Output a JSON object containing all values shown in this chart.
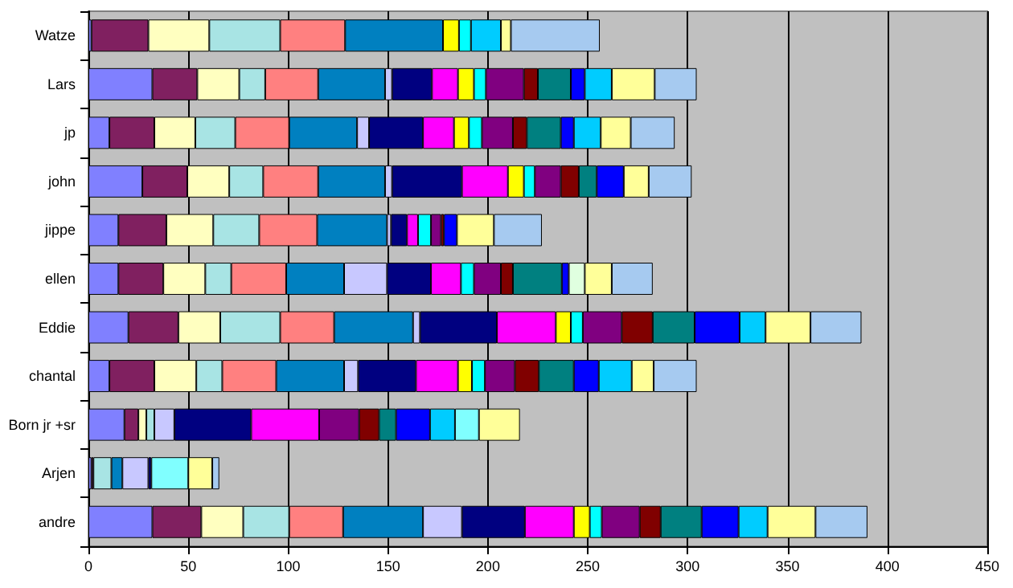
{
  "chart_data": {
    "type": "bar",
    "orientation": "horizontal",
    "stacked": true,
    "categories": [
      "Watze",
      "Lars",
      "jp",
      "john",
      "jippe",
      "ellen",
      "Eddie",
      "chantal",
      "Born jr +sr",
      "Arjen",
      "andre"
    ],
    "xlim": [
      0,
      450
    ],
    "xticks": [
      0,
      50,
      100,
      150,
      200,
      250,
      300,
      350,
      400,
      450
    ],
    "grid": "x",
    "series": [
      {
        "color": "#8080ff",
        "values": [
          1.5,
          32,
          10.5,
          27,
          15,
          15,
          20,
          10.5,
          18,
          1.5,
          32
        ]
      },
      {
        "color": "#802060",
        "values": [
          28.5,
          22.5,
          22.5,
          22.5,
          24,
          22.5,
          25,
          22.5,
          7,
          1,
          24.5
        ]
      },
      {
        "color": "#ffffc0",
        "values": [
          30.5,
          21,
          20.5,
          21,
          23.5,
          21,
          21,
          21,
          4,
          0,
          21
        ]
      },
      {
        "color": "#a8e4e4",
        "values": [
          35.5,
          13,
          20,
          17,
          23,
          13,
          30,
          13,
          4,
          9,
          23
        ]
      },
      {
        "color": "#ff8080",
        "values": [
          32.5,
          26.5,
          27,
          27.5,
          29,
          27.5,
          27,
          27,
          0,
          0,
          27
        ]
      },
      {
        "color": "#0080c0",
        "values": [
          49,
          33.5,
          34,
          33.5,
          35,
          29,
          39.5,
          34,
          0,
          5.5,
          40
        ]
      },
      {
        "color": "#c8c8ff",
        "values": [
          0,
          3.5,
          6,
          3.5,
          2,
          21.5,
          3.5,
          7,
          10,
          13,
          19.5
        ]
      },
      {
        "color": "#000080",
        "values": [
          0,
          20,
          27,
          35,
          8,
          22,
          38.5,
          29,
          38.5,
          1.5,
          31.5
        ]
      },
      {
        "color": "#ff00ff",
        "values": [
          0,
          13,
          15.5,
          23,
          5.5,
          15,
          29.5,
          21,
          34,
          0,
          24.5
        ]
      },
      {
        "color": "#ffff00",
        "values": [
          8,
          8,
          7.5,
          8,
          0,
          0,
          7.5,
          7,
          0,
          0,
          8
        ]
      },
      {
        "color": "#00ffff",
        "values": [
          6,
          6,
          6.5,
          5.5,
          6.5,
          6.5,
          6,
          6.5,
          0,
          0,
          6
        ]
      },
      {
        "color": "#800080",
        "values": [
          0,
          19,
          15.5,
          13,
          5,
          13.5,
          19.5,
          15,
          20,
          0,
          19
        ]
      },
      {
        "color": "#800000",
        "values": [
          0,
          7,
          7,
          9,
          1.5,
          6,
          15.5,
          12,
          10,
          0,
          10.5
        ]
      },
      {
        "color": "#008080",
        "values": [
          0,
          16.5,
          17,
          9,
          0,
          24.5,
          21,
          17.5,
          8.5,
          0,
          20.5
        ]
      },
      {
        "color": "#0000ff",
        "values": [
          0,
          7,
          6.5,
          13.5,
          6.5,
          3.5,
          22.5,
          12.5,
          17,
          0,
          18.5
        ]
      },
      {
        "color": "#00ccff",
        "values": [
          15,
          13.5,
          13.5,
          0,
          0,
          0,
          13,
          16.5,
          12.5,
          0,
          14.5
        ]
      },
      {
        "color": "#80ffff",
        "values": [
          0,
          0,
          0,
          0,
          0,
          0,
          0,
          0,
          12,
          18.5,
          0
        ]
      },
      {
        "color": "#e0ffe0",
        "values": [
          0,
          0,
          0,
          0,
          0,
          8,
          0,
          0,
          0,
          0,
          0
        ]
      },
      {
        "color": "#ffff99",
        "values": [
          5,
          21.5,
          15,
          12.5,
          18.5,
          13.5,
          22.5,
          11,
          20.5,
          12,
          24
        ]
      },
      {
        "color": "#a6caf0",
        "values": [
          44.5,
          21,
          22,
          21.5,
          24,
          20.5,
          25.5,
          21.5,
          0,
          3.5,
          26
        ]
      }
    ]
  }
}
